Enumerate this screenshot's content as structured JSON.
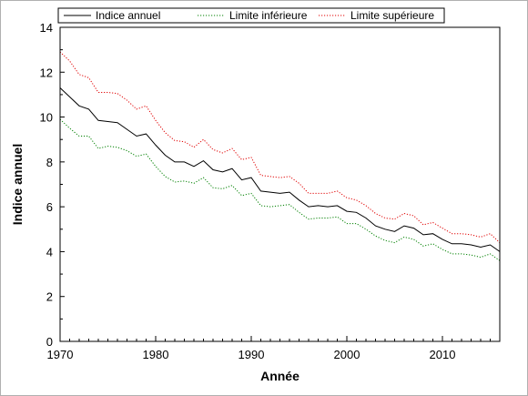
{
  "chart_data": {
    "type": "line",
    "xlabel": "Année",
    "ylabel": "Indice annuel",
    "xlim": [
      1970,
      2016
    ],
    "ylim": [
      0,
      14
    ],
    "x_ticks": [
      1970,
      1980,
      1990,
      2000,
      2010
    ],
    "y_ticks": [
      0,
      2,
      4,
      6,
      8,
      10,
      12,
      14
    ],
    "legend_position": "top",
    "x": [
      1970,
      1971,
      1972,
      1973,
      1974,
      1975,
      1976,
      1977,
      1978,
      1979,
      1980,
      1981,
      1982,
      1983,
      1984,
      1985,
      1986,
      1987,
      1988,
      1989,
      1990,
      1991,
      1992,
      1993,
      1994,
      1995,
      1996,
      1997,
      1998,
      1999,
      2000,
      2001,
      2002,
      2003,
      2004,
      2005,
      2006,
      2007,
      2008,
      2009,
      2010,
      2011,
      2012,
      2013,
      2014,
      2015,
      2016
    ],
    "series": [
      {
        "name": "Indice annuel",
        "color": "#000000",
        "style": "solid",
        "values": [
          11.3,
          10.9,
          10.5,
          10.35,
          9.85,
          9.8,
          9.75,
          9.45,
          9.15,
          9.25,
          8.75,
          8.3,
          8.0,
          8.0,
          7.8,
          8.05,
          7.65,
          7.55,
          7.7,
          7.2,
          7.3,
          6.7,
          6.65,
          6.6,
          6.65,
          6.3,
          6.0,
          6.05,
          6.0,
          6.05,
          5.8,
          5.75,
          5.5,
          5.15,
          5.0,
          4.9,
          5.15,
          5.05,
          4.75,
          4.8,
          4.55,
          4.35,
          4.35,
          4.3,
          4.2,
          4.3,
          4.0
        ]
      },
      {
        "name": "Limite inférieure",
        "color": "#008000",
        "style": "dotted",
        "values": [
          9.9,
          9.5,
          9.15,
          9.15,
          8.6,
          8.7,
          8.65,
          8.5,
          8.25,
          8.35,
          7.8,
          7.35,
          7.1,
          7.15,
          7.05,
          7.3,
          6.85,
          6.8,
          6.95,
          6.5,
          6.6,
          6.05,
          6.0,
          6.05,
          6.1,
          5.75,
          5.45,
          5.5,
          5.5,
          5.55,
          5.25,
          5.25,
          5.0,
          4.7,
          4.5,
          4.4,
          4.65,
          4.55,
          4.25,
          4.35,
          4.1,
          3.9,
          3.9,
          3.85,
          3.75,
          3.9,
          3.6
        ]
      },
      {
        "name": "Limite supérieure",
        "color": "#e00000",
        "style": "dotted",
        "values": [
          12.9,
          12.5,
          11.9,
          11.75,
          11.1,
          11.1,
          11.05,
          10.75,
          10.35,
          10.5,
          9.85,
          9.3,
          8.95,
          8.9,
          8.65,
          9.0,
          8.55,
          8.4,
          8.6,
          8.1,
          8.2,
          7.4,
          7.35,
          7.3,
          7.35,
          7.05,
          6.6,
          6.6,
          6.6,
          6.7,
          6.4,
          6.3,
          6.05,
          5.7,
          5.5,
          5.45,
          5.7,
          5.6,
          5.2,
          5.3,
          5.05,
          4.8,
          4.8,
          4.75,
          4.65,
          4.8,
          4.4
        ]
      }
    ]
  }
}
